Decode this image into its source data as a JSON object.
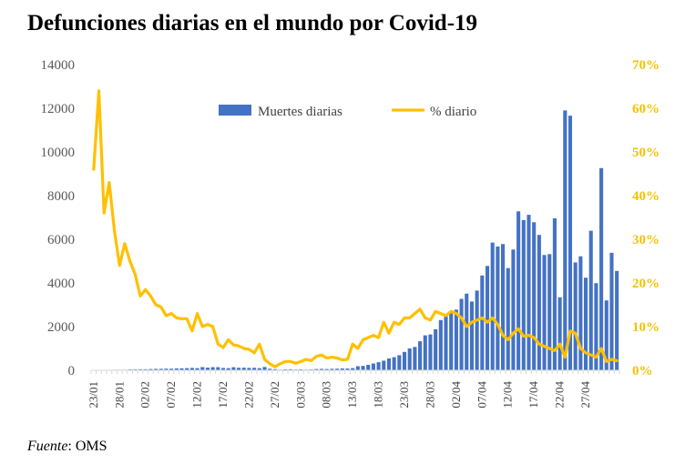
{
  "title": "Defunciones diarias en el mundo por Covid-19",
  "source": {
    "label": "Fuente",
    "text": ": OMS"
  },
  "chart_data": {
    "type": "bar+line",
    "title": "Defunciones diarias en el mundo por Covid-19",
    "colors": {
      "bars": "#4472c4",
      "line": "#ffc000",
      "right_axis": "#f2c200"
    },
    "legend": {
      "position": "top-center",
      "entries": [
        "Muertes diarias",
        "% diario"
      ]
    },
    "left_axis": {
      "ylim": [
        0,
        14000
      ],
      "ticks": [
        0,
        2000,
        4000,
        6000,
        8000,
        10000,
        12000,
        14000
      ]
    },
    "right_axis": {
      "ylim": [
        0,
        70
      ],
      "ticks": [
        "0%",
        "10%",
        "20%",
        "30%",
        "40%",
        "50%",
        "60%",
        "70%"
      ]
    },
    "x_tick_labels": [
      "23/01",
      "28/01",
      "02/02",
      "07/02",
      "12/02",
      "17/02",
      "22/02",
      "27/02",
      "03/03",
      "08/03",
      "13/03",
      "18/03",
      "23/03",
      "28/03",
      "02/04",
      "07/04",
      "12/04",
      "17/04",
      "22/04",
      "27/04"
    ],
    "x_start": "23/01",
    "x_end": "28/04",
    "series": [
      {
        "name": "Muertes diarias",
        "type": "bar",
        "axis": "left",
        "values": [
          0,
          8,
          16,
          15,
          24,
          25,
          26,
          38,
          42,
          46,
          46,
          57,
          64,
          66,
          73,
          73,
          86,
          89,
          97,
          108,
          97,
          146,
          121,
          143,
          142,
          105,
          98,
          139,
          115,
          118,
          109,
          114,
          98,
          150,
          70,
          52,
          29,
          44,
          47,
          35,
          42,
          31,
          38,
          57,
          64,
          58,
          67,
          72,
          84,
          80,
          98,
          185,
          200,
          250,
          310,
          370,
          440,
          540,
          600,
          690,
          840,
          1000,
          1070,
          1330,
          1600,
          1640,
          1880,
          2300,
          2480,
          2700,
          2780,
          3270,
          3510,
          3150,
          3650,
          4340,
          4780,
          5850,
          5670,
          5780,
          4680,
          5530,
          7280,
          6880,
          7120,
          6780,
          6200,
          5280,
          5320,
          6960,
          3340,
          11900,
          11660,
          4940,
          5220,
          4240,
          6390,
          3990,
          9260,
          3200,
          5380,
          4550
        ]
      },
      {
        "name": "% diario",
        "type": "line",
        "axis": "right",
        "values": [
          46,
          64,
          36,
          43,
          32,
          24,
          29,
          25,
          22,
          17,
          18.5,
          17,
          15,
          14.5,
          12.5,
          13,
          12,
          11.8,
          11.8,
          9,
          13,
          10,
          10.5,
          10,
          6,
          5.2,
          7,
          5.8,
          5.6,
          5,
          4.8,
          4,
          6,
          2.5,
          1.5,
          0.8,
          1.5,
          2,
          2,
          1.6,
          2,
          2.5,
          2.2,
          3.2,
          3.5,
          2.8,
          3,
          2.8,
          2.4,
          2.5,
          6,
          5,
          7,
          7.5,
          8,
          7.5,
          11,
          8.5,
          11,
          10.5,
          12,
          12,
          13,
          14,
          12,
          11.5,
          13.5,
          13,
          12.5,
          13.5,
          13,
          12,
          10,
          11,
          11.5,
          12,
          11,
          12,
          10.5,
          8,
          7,
          8.5,
          9.5,
          7.8,
          8,
          7.5,
          6,
          5.5,
          5,
          4.5,
          6,
          3,
          9,
          8.5,
          5,
          4,
          3.5,
          3,
          5,
          2,
          2.5,
          2.2
        ]
      }
    ]
  }
}
